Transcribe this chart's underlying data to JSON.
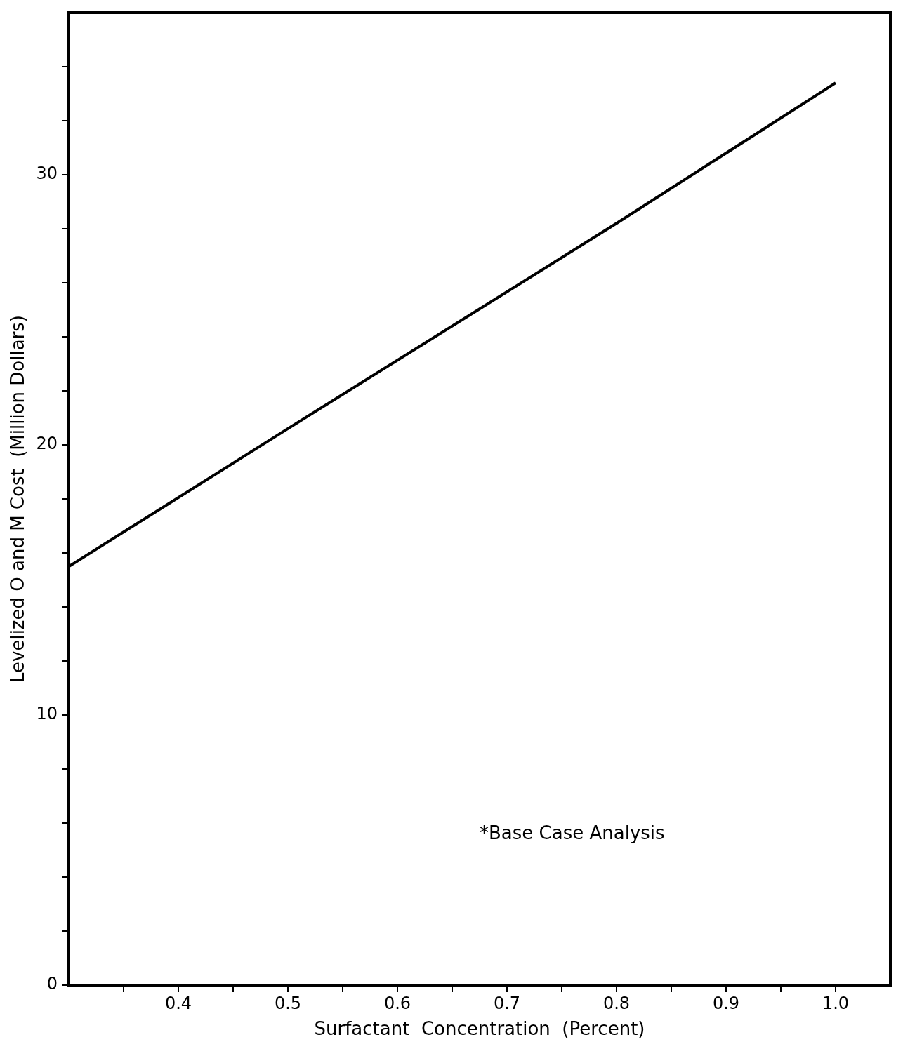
{
  "chart_data": {
    "type": "line",
    "xlabel": "Surfactant  Concentration  (Percent)",
    "ylabel": "Levelized O and M Cost  (Million Dollars)",
    "annotations": [
      "*Base Case Analysis"
    ],
    "x": [
      0.3,
      0.5,
      0.8,
      1.0
    ],
    "series": [
      {
        "color": "#000000",
        "values": [
          15.5,
          20.6,
          28.2,
          33.4
        ]
      }
    ],
    "xlim": [
      0.3,
      1.05
    ],
    "xticks": [
      {
        "value": 0.35,
        "label": null
      },
      0.4,
      {
        "value": 0.45,
        "label": null
      },
      0.5,
      {
        "value": 0.55,
        "label": null
      },
      0.6,
      {
        "value": 0.65,
        "label": null
      },
      0.7,
      {
        "value": 0.75,
        "label": null
      },
      0.8,
      {
        "value": 0.85,
        "label": null
      },
      0.9,
      {
        "value": 0.95,
        "label": null
      },
      {
        "value": 1.0,
        "label": "1.0"
      }
    ],
    "ylim": [
      0,
      36
    ],
    "yticks": [
      0,
      {
        "value": 2,
        "label": null
      },
      {
        "value": 4,
        "label": null
      },
      {
        "value": 6,
        "label": null
      },
      {
        "value": 8,
        "label": null
      },
      10,
      {
        "value": 12,
        "label": null
      },
      {
        "value": 14,
        "label": null
      },
      {
        "value": 16,
        "label": null
      },
      {
        "value": 18,
        "label": null
      },
      20,
      {
        "value": 22,
        "label": null
      },
      {
        "value": 24,
        "label": null
      },
      {
        "value": 26,
        "label": null
      },
      {
        "value": 28,
        "label": null
      },
      30,
      {
        "value": 32,
        "label": null
      },
      {
        "value": 34,
        "label": null
      }
    ],
    "grid": false,
    "legend": false,
    "marker": "none",
    "line_style": "solid"
  }
}
